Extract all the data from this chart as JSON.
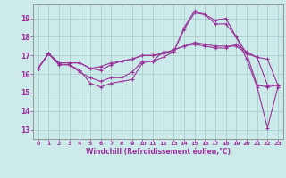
{
  "xlabel": "Windchill (Refroidissement éolien,°C)",
  "background_color": "#cdeaea",
  "grid_color": "#aacece",
  "line_color": "#993399",
  "spine_color": "#888888",
  "xlim": [
    -0.5,
    23.5
  ],
  "ylim": [
    12.5,
    19.75
  ],
  "yticks": [
    13,
    14,
    15,
    16,
    17,
    18,
    19
  ],
  "xticks": [
    0,
    1,
    2,
    3,
    4,
    5,
    6,
    7,
    8,
    9,
    10,
    11,
    12,
    13,
    14,
    15,
    16,
    17,
    18,
    19,
    20,
    21,
    22,
    23
  ],
  "series": [
    [
      16.3,
      17.1,
      16.5,
      16.5,
      16.2,
      15.5,
      15.3,
      15.5,
      15.6,
      15.7,
      16.6,
      16.7,
      17.2,
      17.2,
      18.4,
      19.3,
      19.2,
      18.9,
      19.0,
      18.0,
      16.8,
      15.3,
      13.1,
      15.3
    ],
    [
      16.3,
      17.1,
      16.5,
      16.5,
      16.1,
      15.8,
      15.6,
      15.8,
      15.8,
      16.1,
      16.7,
      16.7,
      16.9,
      17.2,
      18.5,
      19.4,
      19.2,
      18.7,
      18.7,
      18.0,
      17.1,
      15.4,
      15.3,
      15.4
    ],
    [
      16.3,
      17.1,
      16.6,
      16.6,
      16.6,
      16.3,
      16.2,
      16.5,
      16.7,
      16.8,
      17.0,
      17.0,
      17.1,
      17.3,
      17.5,
      17.6,
      17.5,
      17.4,
      17.4,
      17.6,
      17.2,
      16.9,
      15.4,
      15.4
    ],
    [
      16.3,
      17.1,
      16.6,
      16.6,
      16.6,
      16.3,
      16.4,
      16.6,
      16.7,
      16.8,
      17.0,
      17.0,
      17.1,
      17.3,
      17.5,
      17.7,
      17.6,
      17.5,
      17.5,
      17.5,
      17.1,
      16.9,
      16.8,
      15.4
    ]
  ]
}
